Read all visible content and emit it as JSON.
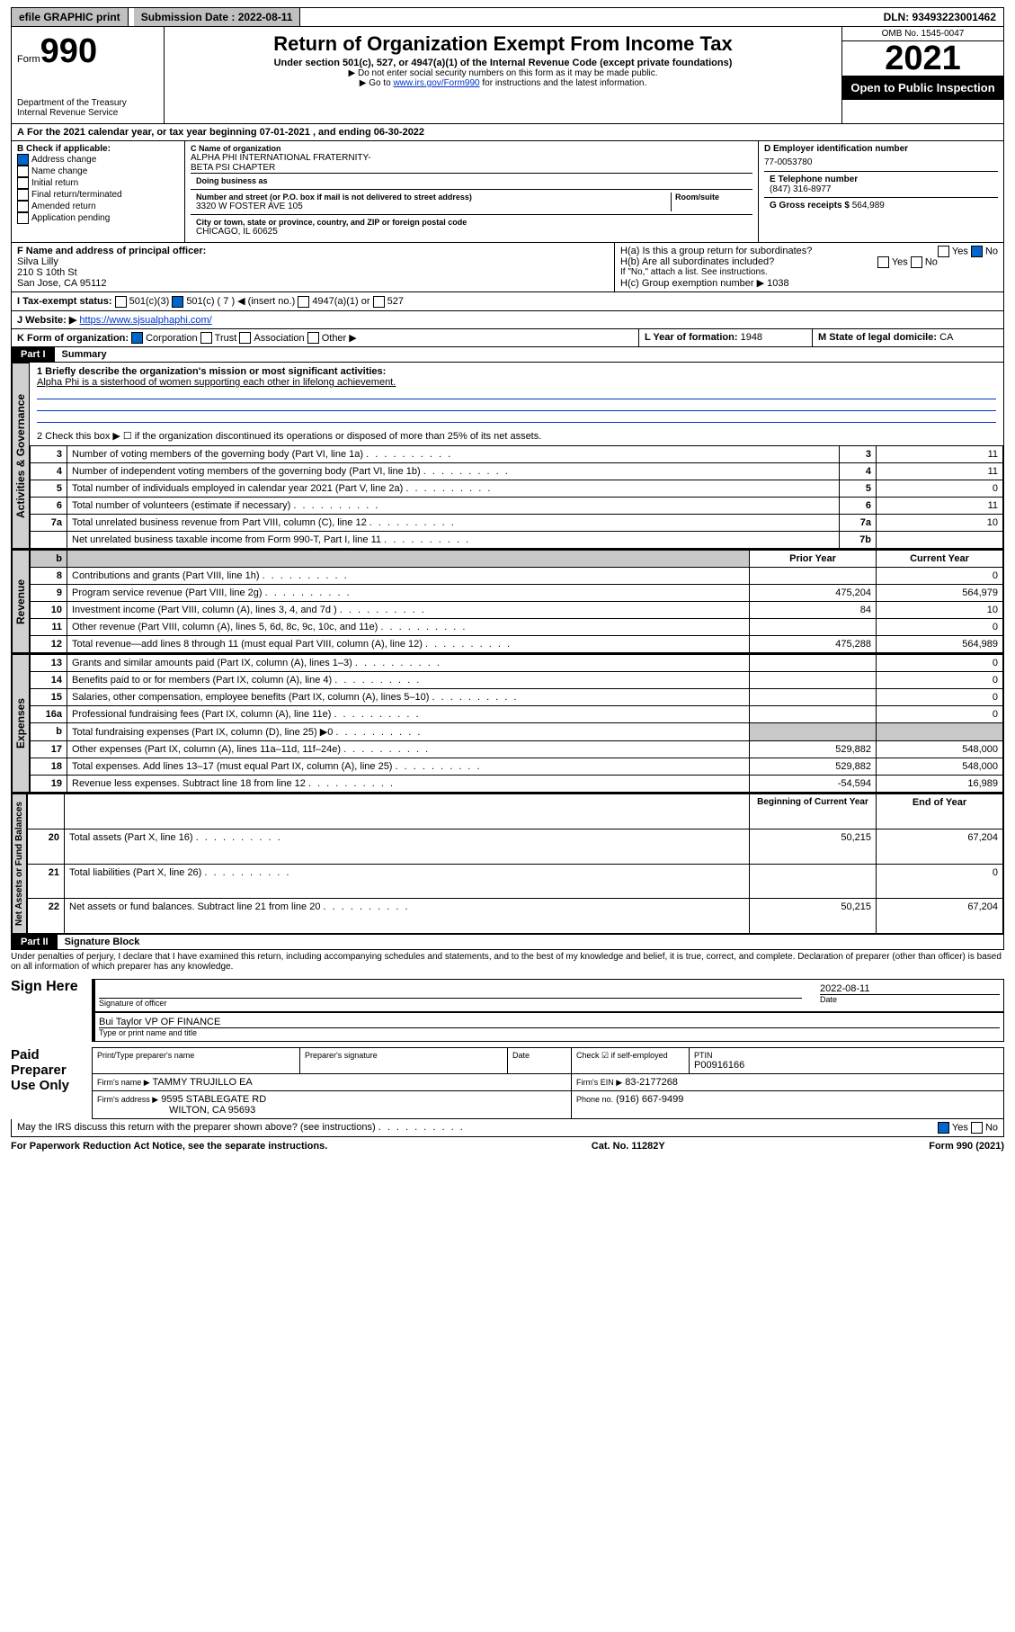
{
  "topbar": {
    "efile": "efile GRAPHIC print",
    "submission_label": "Submission Date : 2022-08-11",
    "dln": "DLN: 93493223001462"
  },
  "header": {
    "form_prefix": "Form",
    "form_number": "990",
    "dept": "Department of the Treasury Internal Revenue Service",
    "title": "Return of Organization Exempt From Income Tax",
    "subtitle": "Under section 501(c), 527, or 4947(a)(1) of the Internal Revenue Code (except private foundations)",
    "warn1": "▶ Do not enter social security numbers on this form as it may be made public.",
    "warn2_pre": "▶ Go to ",
    "warn2_link": "www.irs.gov/Form990",
    "warn2_post": " for instructions and the latest information.",
    "omb": "OMB No. 1545-0047",
    "year": "2021",
    "inspection": "Open to Public Inspection"
  },
  "period": {
    "line": "For the 2021 calendar year, or tax year beginning 07-01-2021  , and ending 06-30-2022"
  },
  "checkboxes": {
    "header": "B Check if applicable:",
    "items": [
      "Address change",
      "Name change",
      "Initial return",
      "Final return/terminated",
      "Amended return",
      "Application pending"
    ],
    "checked_index": 0
  },
  "org": {
    "name_lbl": "C Name of organization",
    "name": "ALPHA PHI INTERNATIONAL FRATERNITY-\nBETA PSI CHAPTER",
    "dba_lbl": "Doing business as",
    "addr_lbl": "Number and street (or P.O. box if mail is not delivered to street address)",
    "room_lbl": "Room/suite",
    "addr": "3320 W FOSTER AVE 105",
    "city_lbl": "City or town, state or province, country, and ZIP or foreign postal code",
    "city": "CHICAGO, IL  60625"
  },
  "ein": {
    "lbl": "D Employer identification number",
    "val": "77-0053780",
    "phone_lbl": "E Telephone number",
    "phone": "(847) 316-8977",
    "gross_lbl": "G Gross receipts $",
    "gross": "564,989"
  },
  "officer": {
    "lbl": "F Name and address of principal officer:",
    "name": "Silva Lilly",
    "addr1": "210 S 10th St",
    "addr2": "San Jose, CA  95112"
  },
  "groupH": {
    "a": "H(a)  Is this a group return for subordinates?",
    "b": "H(b)  Are all subordinates included?",
    "note": "If \"No,\" attach a list. See instructions.",
    "c_lbl": "H(c)  Group exemption number ▶",
    "c_val": "1038",
    "yes": "Yes",
    "no": "No"
  },
  "taxstatus": {
    "lbl": "I  Tax-exempt status:",
    "opts": [
      "501(c)(3)",
      "501(c) ( 7 ) ◀ (insert no.)",
      "4947(a)(1) or",
      "527"
    ]
  },
  "website": {
    "lbl": "J  Website: ▶",
    "val": "https://www.sjsualphaphi.com/"
  },
  "formorg": {
    "lbl": "K Form of organization:",
    "opts": [
      "Corporation",
      "Trust",
      "Association",
      "Other ▶"
    ],
    "year_lbl": "L Year of formation:",
    "year": "1948",
    "state_lbl": "M State of legal domicile:",
    "state": "CA"
  },
  "part1": {
    "hdr": "Part I",
    "title": "Summary",
    "q1_lbl": "1  Briefly describe the organization's mission or most significant activities:",
    "q1_val": "Alpha Phi is a sisterhood of women supporting each other in lifelong achievement.",
    "q2": "2  Check this box ▶ ☐  if the organization discontinued its operations or disposed of more than 25% of its net assets.",
    "rows_gov": [
      {
        "n": "3",
        "t": "Number of voting members of the governing body (Part VI, line 1a)",
        "b": "3",
        "v": "11"
      },
      {
        "n": "4",
        "t": "Number of independent voting members of the governing body (Part VI, line 1b)",
        "b": "4",
        "v": "11"
      },
      {
        "n": "5",
        "t": "Total number of individuals employed in calendar year 2021 (Part V, line 2a)",
        "b": "5",
        "v": "0"
      },
      {
        "n": "6",
        "t": "Total number of volunteers (estimate if necessary)",
        "b": "6",
        "v": "11"
      },
      {
        "n": "7a",
        "t": "Total unrelated business revenue from Part VIII, column (C), line 12",
        "b": "7a",
        "v": "10"
      },
      {
        "n": "",
        "t": "Net unrelated business taxable income from Form 990-T, Part I, line 11",
        "b": "7b",
        "v": ""
      }
    ],
    "col_prior": "Prior Year",
    "col_current": "Current Year",
    "rows_rev": [
      {
        "n": "8",
        "t": "Contributions and grants (Part VIII, line 1h)",
        "p": "",
        "c": "0"
      },
      {
        "n": "9",
        "t": "Program service revenue (Part VIII, line 2g)",
        "p": "475,204",
        "c": "564,979"
      },
      {
        "n": "10",
        "t": "Investment income (Part VIII, column (A), lines 3, 4, and 7d )",
        "p": "84",
        "c": "10"
      },
      {
        "n": "11",
        "t": "Other revenue (Part VIII, column (A), lines 5, 6d, 8c, 9c, 10c, and 11e)",
        "p": "",
        "c": "0"
      },
      {
        "n": "12",
        "t": "Total revenue—add lines 8 through 11 (must equal Part VIII, column (A), line 12)",
        "p": "475,288",
        "c": "564,989"
      }
    ],
    "rows_exp": [
      {
        "n": "13",
        "t": "Grants and similar amounts paid (Part IX, column (A), lines 1–3)",
        "p": "",
        "c": "0"
      },
      {
        "n": "14",
        "t": "Benefits paid to or for members (Part IX, column (A), line 4)",
        "p": "",
        "c": "0"
      },
      {
        "n": "15",
        "t": "Salaries, other compensation, employee benefits (Part IX, column (A), lines 5–10)",
        "p": "",
        "c": "0"
      },
      {
        "n": "16a",
        "t": "Professional fundraising fees (Part IX, column (A), line 11e)",
        "p": "",
        "c": "0"
      },
      {
        "n": "b",
        "t": "Total fundraising expenses (Part IX, column (D), line 25) ▶0",
        "p": "grey",
        "c": "grey"
      },
      {
        "n": "17",
        "t": "Other expenses (Part IX, column (A), lines 11a–11d, 11f–24e)",
        "p": "529,882",
        "c": "548,000"
      },
      {
        "n": "18",
        "t": "Total expenses. Add lines 13–17 (must equal Part IX, column (A), line 25)",
        "p": "529,882",
        "c": "548,000"
      },
      {
        "n": "19",
        "t": "Revenue less expenses. Subtract line 18 from line 12",
        "p": "-54,594",
        "c": "16,989"
      }
    ],
    "col_begin": "Beginning of Current Year",
    "col_end": "End of Year",
    "rows_net": [
      {
        "n": "20",
        "t": "Total assets (Part X, line 16)",
        "p": "50,215",
        "c": "67,204"
      },
      {
        "n": "21",
        "t": "Total liabilities (Part X, line 26)",
        "p": "",
        "c": "0"
      },
      {
        "n": "22",
        "t": "Net assets or fund balances. Subtract line 21 from line 20",
        "p": "50,215",
        "c": "67,204"
      }
    ]
  },
  "vtabs": {
    "gov": "Activities & Governance",
    "rev": "Revenue",
    "exp": "Expenses",
    "net": "Net Assets or Fund Balances"
  },
  "part2": {
    "hdr": "Part II",
    "title": "Signature Block",
    "perjury": "Under penalties of perjury, I declare that I have examined this return, including accompanying schedules and statements, and to the best of my knowledge and belief, it is true, correct, and complete. Declaration of preparer (other than officer) is based on all information of which preparer has any knowledge.",
    "sign_here": "Sign Here",
    "sig_officer": "Signature of officer",
    "sig_date": "2022-08-11",
    "date_lbl": "Date",
    "name_title": "Bui Taylor VP OF FINANCE",
    "name_lbl": "Type or print name and title",
    "paid": "Paid Preparer Use Only",
    "prep_name_lbl": "Print/Type preparer's name",
    "prep_sig_lbl": "Preparer's signature",
    "prep_date_lbl": "Date",
    "self_emp": "Check ☑ if self-employed",
    "ptin_lbl": "PTIN",
    "ptin": "P00916166",
    "firm_name_lbl": "Firm's name    ▶",
    "firm_name": "TAMMY TRUJILLO EA",
    "firm_ein_lbl": "Firm's EIN ▶",
    "firm_ein": "83-2177268",
    "firm_addr_lbl": "Firm's address ▶",
    "firm_addr": "9595 STABLEGATE RD",
    "firm_city": "WILTON, CA  95693",
    "firm_phone_lbl": "Phone no.",
    "firm_phone": "(916) 667-9499",
    "discuss": "May the IRS discuss this return with the preparer shown above? (see instructions)"
  },
  "footer": {
    "left": "For Paperwork Reduction Act Notice, see the separate instructions.",
    "mid": "Cat. No. 11282Y",
    "right": "Form 990 (2021)"
  },
  "colors": {
    "link": "#0033cc",
    "checked": "#0066cc",
    "grey": "#c8c8c8",
    "vtab_bg": "#d0d0d0"
  }
}
